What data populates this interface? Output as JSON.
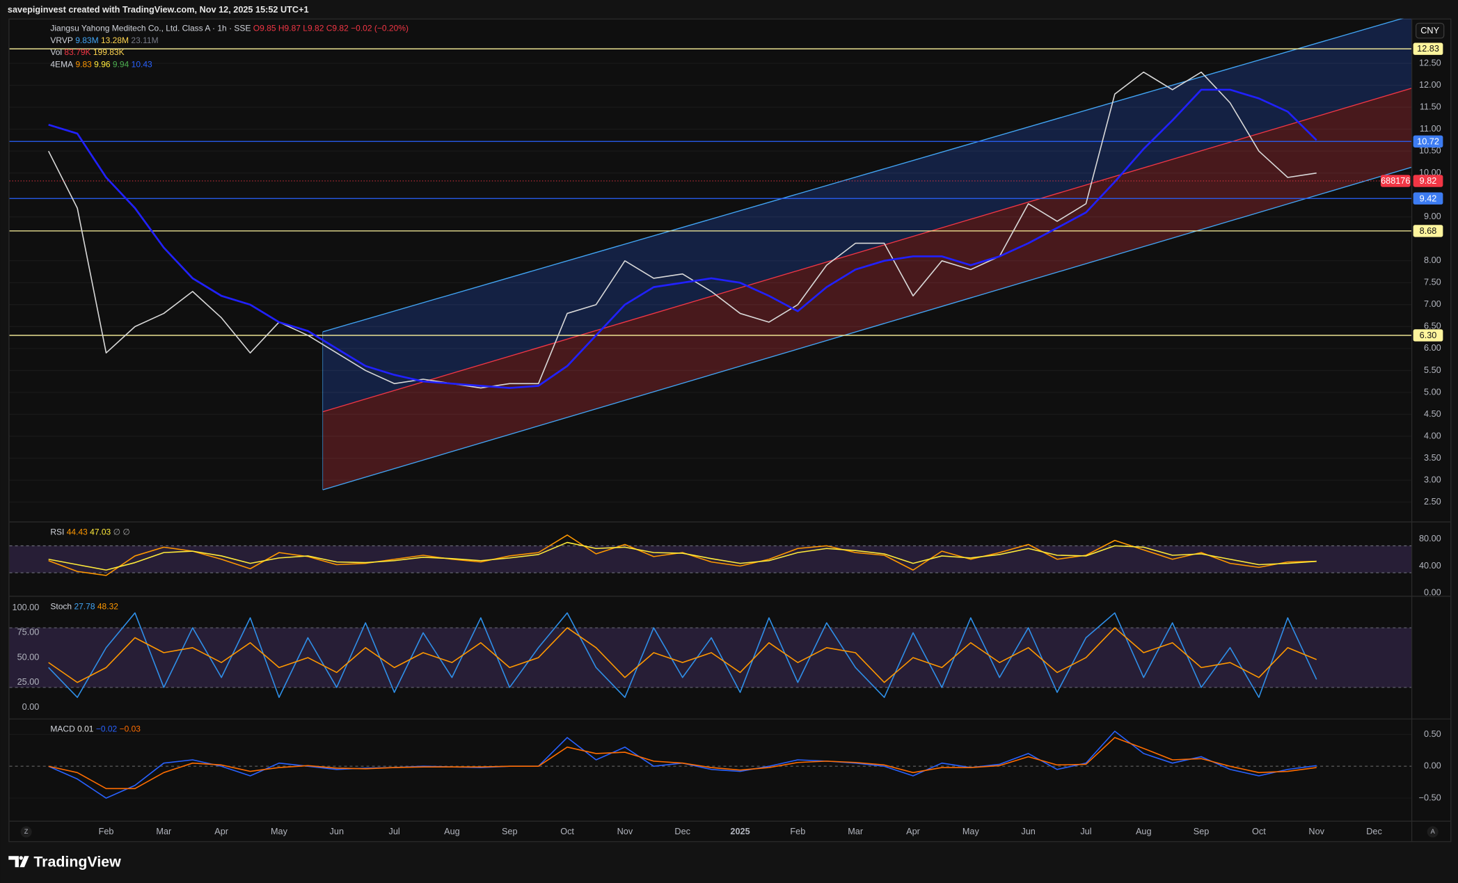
{
  "header": {
    "credit": "savepiginvest created with TradingView.com, Nov 12, 2025 15:52 UTC+1"
  },
  "footer": {
    "brand": "TradingView"
  },
  "controls": {
    "left": "Z",
    "right": "A"
  },
  "chart_data": [
    {
      "type": "line",
      "title": "Jiangsu Yahong Meditech Co., Ltd. Class A · 1h · SSE",
      "ohlc": [
        "O9.85",
        "H9.87",
        "L9.82",
        "C9.82",
        "−0.02 (−0.20%)"
      ],
      "indicators": [
        {
          "label": "VRVP",
          "values": [
            "9.83M",
            "13.28M",
            "23.11M"
          ],
          "colors": [
            "#42a5f5",
            "#ffd54f",
            "#787b86"
          ]
        },
        {
          "label": "Vol",
          "values": [
            "83.79K",
            "199.83K"
          ],
          "colors": [
            "#f23645",
            "#ffd54f"
          ]
        },
        {
          "label": "4EMA",
          "values": [
            "9.83",
            "9.96",
            "9.94",
            "10.43"
          ],
          "colors": [
            "#ff9800",
            "#ffeb3b",
            "#4caf50",
            "#2962ff"
          ]
        }
      ],
      "currency": "CNY",
      "categories": [
        null,
        null,
        "Feb",
        null,
        "Mar",
        null,
        "Apr",
        null,
        "May",
        null,
        "Jun",
        null,
        "Jul",
        null,
        "Aug",
        null,
        "Sep",
        null,
        "Oct",
        null,
        "Nov",
        null,
        "Dec",
        null,
        "2025",
        null,
        "Feb",
        null,
        "Mar",
        null,
        "Apr",
        null,
        "May",
        null,
        "Jun",
        null,
        "Jul",
        null,
        "Aug",
        null,
        "Sep",
        null,
        "Oct",
        null,
        "Nov",
        null,
        "Dec",
        null
      ],
      "series": [
        {
          "color": "#d9d9d9",
          "values": [
            10.5,
            9.2,
            5.9,
            6.5,
            6.8,
            7.3,
            6.7,
            5.9,
            6.6,
            6.3,
            5.9,
            5.5,
            5.2,
            5.3,
            5.2,
            5.1,
            5.2,
            5.2,
            6.8,
            7.0,
            8.0,
            7.6,
            7.7,
            7.3,
            6.8,
            6.6,
            7.0,
            7.9,
            8.4,
            8.4,
            7.2,
            8.0,
            7.8,
            8.1,
            9.3,
            8.9,
            9.3,
            11.8,
            12.3,
            11.9,
            12.3,
            11.6,
            10.5,
            9.9,
            10.0,
            null,
            null,
            null
          ]
        },
        {
          "color": "#2121ff",
          "values": [
            11.1,
            10.9,
            9.9,
            9.2,
            8.3,
            7.6,
            7.2,
            7.0,
            6.6,
            6.4,
            6.0,
            5.6,
            5.4,
            5.25,
            5.2,
            5.15,
            5.1,
            5.15,
            5.6,
            6.3,
            7.0,
            7.4,
            7.5,
            7.6,
            7.5,
            7.2,
            6.85,
            7.4,
            7.8,
            8.0,
            8.1,
            8.1,
            7.9,
            8.1,
            8.4,
            8.75,
            9.1,
            9.8,
            10.55,
            11.2,
            11.9,
            11.9,
            11.7,
            11.4,
            10.75,
            null,
            null,
            null
          ]
        }
      ],
      "ylim": [
        2.08,
        13.52
      ],
      "yticks": [
        {
          "value": 12.5,
          "label": "12.50"
        },
        {
          "value": 12,
          "label": "12.00"
        },
        {
          "value": 11.5,
          "label": "11.50"
        },
        {
          "value": 11,
          "label": "11.00"
        },
        {
          "value": 10.5,
          "label": "10.50"
        },
        {
          "value": 10,
          "label": "10.00"
        },
        {
          "value": 9,
          "label": "9.00"
        },
        {
          "value": 8,
          "label": "8.00"
        },
        {
          "value": 7.5,
          "label": "7.50"
        },
        {
          "value": 7,
          "label": "7.00"
        },
        {
          "value": 6.5,
          "label": "6.50"
        },
        {
          "value": 6,
          "label": "6.00"
        },
        {
          "value": 5.5,
          "label": "5.50"
        },
        {
          "value": 5,
          "label": "5.00"
        },
        {
          "value": 4.5,
          "label": "4.50"
        },
        {
          "value": 4,
          "label": "4.00"
        },
        {
          "value": 3.5,
          "label": "3.50"
        },
        {
          "value": 3,
          "label": "3.00"
        },
        {
          "value": 2.5,
          "label": "2.50"
        }
      ],
      "levels": [
        {
          "value": 12.83,
          "label": "12.83",
          "color": "#fff59d"
        },
        {
          "value": 10.72,
          "label": "10.72",
          "color": "#2962ff"
        },
        {
          "value": 9.42,
          "label": "9.42",
          "color": "#2962ff"
        },
        {
          "value": 8.68,
          "label": "8.68",
          "color": "#fff59d"
        },
        {
          "value": 6.3,
          "label": "6.30",
          "color": "#fff59d"
        }
      ],
      "last_price": 9.82,
      "symbol_code": "688176",
      "grid": true,
      "axis_side": "right"
    },
    {
      "type": "line",
      "legend": {
        "label": "RSI",
        "values": [
          "44.43",
          "47.03",
          "∅",
          "∅"
        ],
        "colors": [
          "#ff9800",
          "#ffeb3b",
          "#9e9e9e",
          "#9e9e9e"
        ]
      },
      "series": [
        {
          "color": "#ff9800",
          "values": [
            48,
            32,
            26,
            55,
            68,
            62,
            50,
            36,
            60,
            54,
            42,
            44,
            50,
            56,
            50,
            46,
            55,
            60,
            86,
            58,
            72,
            54,
            60,
            46,
            40,
            50,
            66,
            70,
            60,
            56,
            34,
            62,
            50,
            60,
            72,
            50,
            56,
            78,
            64,
            50,
            60,
            44,
            38,
            46,
            47,
            null,
            null,
            null
          ]
        },
        {
          "color": "#ffeb3b",
          "values": [
            50,
            42,
            34,
            45,
            60,
            62,
            55,
            44,
            52,
            55,
            46,
            45,
            48,
            53,
            51,
            48,
            52,
            57,
            75,
            66,
            68,
            60,
            59,
            51,
            44,
            48,
            60,
            66,
            63,
            58,
            44,
            55,
            52,
            57,
            66,
            56,
            55,
            70,
            68,
            56,
            58,
            50,
            42,
            44,
            47,
            null,
            null,
            null
          ]
        }
      ],
      "ylim": [
        -2.8,
        103.4
      ],
      "yticks": [
        {
          "value": 80,
          "label": "80.00"
        },
        {
          "value": 40,
          "label": "40.00"
        },
        {
          "value": 0,
          "label": "0.00"
        }
      ],
      "bands": [
        30,
        70
      ],
      "grid": false,
      "axis_side": "right"
    },
    {
      "type": "line",
      "legend": {
        "label": "Stoch",
        "values": [
          "27.78",
          "48.32"
        ],
        "colors": [
          "#42a5f5",
          "#ff9800"
        ]
      },
      "series": [
        {
          "color": "#2f8fe8",
          "values": [
            40,
            10,
            60,
            95,
            20,
            80,
            30,
            90,
            10,
            70,
            20,
            85,
            15,
            75,
            30,
            90,
            20,
            60,
            95,
            40,
            10,
            80,
            30,
            70,
            15,
            90,
            25,
            85,
            40,
            10,
            75,
            20,
            90,
            30,
            80,
            15,
            70,
            95,
            30,
            85,
            20,
            60,
            10,
            90,
            28,
            null,
            null,
            null
          ]
        },
        {
          "color": "#ff9800",
          "values": [
            45,
            25,
            40,
            70,
            55,
            60,
            45,
            65,
            40,
            50,
            35,
            60,
            40,
            55,
            45,
            65,
            40,
            50,
            80,
            60,
            30,
            55,
            45,
            55,
            35,
            65,
            45,
            60,
            55,
            25,
            50,
            40,
            65,
            45,
            60,
            35,
            50,
            80,
            55,
            65,
            40,
            45,
            30,
            60,
            48,
            null,
            null,
            null
          ]
        }
      ],
      "ylim": [
        -10.3,
        110.3
      ],
      "yticks": [
        {
          "value": 100,
          "label": "100.00"
        },
        {
          "value": 75,
          "label": "75.00"
        },
        {
          "value": 50,
          "label": "50.00"
        },
        {
          "value": 25,
          "label": "25.00"
        },
        {
          "value": 0,
          "label": "0.00"
        }
      ],
      "bands": [
        20,
        80
      ],
      "grid": false,
      "axis_side": "left"
    },
    {
      "type": "line",
      "legend": {
        "label": "MACD",
        "values": [
          "0.01",
          "−0.02",
          "−0.03"
        ],
        "colors": [
          "#e0e0e0",
          "#2962ff",
          "#ff6d00"
        ]
      },
      "series": [
        {
          "color": "#2962ff",
          "values": [
            0,
            -0.2,
            -0.5,
            -0.3,
            0.05,
            0.1,
            0,
            -0.15,
            0.05,
            0,
            -0.05,
            -0.03,
            -0.02,
            0,
            -0.01,
            -0.02,
            0,
            0,
            0.45,
            0.1,
            0.3,
            0,
            0.05,
            -0.05,
            -0.08,
            0,
            0.1,
            0.08,
            0.05,
            0,
            -0.15,
            0.05,
            -0.02,
            0.03,
            0.2,
            -0.05,
            0.05,
            0.55,
            0.2,
            0.05,
            0.15,
            -0.05,
            -0.15,
            -0.05,
            0.01,
            null,
            null,
            null
          ]
        },
        {
          "color": "#ff6d00",
          "values": [
            0,
            -0.1,
            -0.35,
            -0.35,
            -0.1,
            0.05,
            0.02,
            -0.08,
            -0.02,
            0.01,
            -0.03,
            -0.04,
            -0.02,
            -0.01,
            -0.01,
            -0.01,
            0,
            0,
            0.3,
            0.2,
            0.22,
            0.08,
            0.05,
            -0.02,
            -0.06,
            -0.02,
            0.06,
            0.08,
            0.06,
            0.02,
            -0.1,
            -0.02,
            -0.02,
            0.01,
            0.15,
            0.02,
            0.03,
            0.45,
            0.28,
            0.1,
            0.12,
            0,
            -0.1,
            -0.08,
            -0.02,
            null,
            null,
            null
          ]
        }
      ],
      "ylim": [
        -0.84,
        0.72
      ],
      "yticks": [
        {
          "value": 0.5,
          "label": "0.50"
        },
        {
          "value": 0,
          "label": "0.00"
        },
        {
          "value": -0.5,
          "label": "−0.50"
        }
      ],
      "grid": true,
      "axis_side": "right"
    }
  ]
}
